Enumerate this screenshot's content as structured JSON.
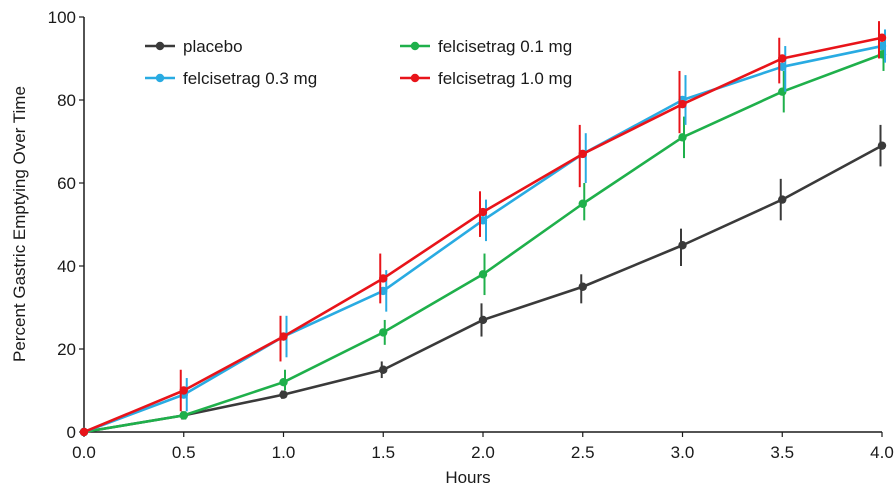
{
  "chart_data": {
    "type": "line",
    "xlabel": "Hours",
    "ylabel": "Percent Gastric Emptying Over Time",
    "xlim": [
      0,
      4
    ],
    "ylim": [
      0,
      100
    ],
    "x_ticks": [
      "0.0",
      "0.5",
      "1.0",
      "1.5",
      "2.0",
      "2.5",
      "3.0",
      "3.5",
      "4.0"
    ],
    "y_ticks": [
      "0",
      "20",
      "40",
      "60",
      "80",
      "100"
    ],
    "grid": false,
    "legend_placement": "top-left",
    "x": [
      0,
      0.5,
      1.0,
      1.5,
      2.0,
      2.5,
      3.0,
      3.5,
      4.0
    ],
    "series": [
      {
        "name": "placebo",
        "color": "#3a3a3a",
        "values": [
          0,
          4,
          9,
          15,
          27,
          35,
          45,
          56,
          69
        ],
        "err_low": [
          0,
          3,
          8,
          13,
          23,
          31,
          40,
          51,
          64
        ],
        "err_high": [
          0,
          5,
          10,
          17,
          31,
          38,
          49,
          61,
          74
        ]
      },
      {
        "name": "felcisetrag 0.1 mg",
        "color": "#1fb04b",
        "values": [
          0,
          4,
          12,
          24,
          38,
          55,
          71,
          82,
          91
        ],
        "err_low": [
          0,
          3,
          10,
          21,
          33,
          51,
          66,
          77,
          87
        ],
        "err_high": [
          0,
          5,
          15,
          27,
          43,
          60,
          76,
          87,
          94
        ]
      },
      {
        "name": "felcisetrag 0.3 mg",
        "color": "#29abe2",
        "values": [
          0,
          9,
          23,
          34,
          51,
          67,
          80,
          88,
          93
        ],
        "err_low": [
          0,
          5,
          18,
          29,
          46,
          60,
          74,
          82,
          89
        ],
        "err_high": [
          0,
          13,
          28,
          39,
          56,
          72,
          86,
          93,
          97
        ]
      },
      {
        "name": "felcisetrag 1.0 mg",
        "color": "#e8141a",
        "values": [
          0,
          10,
          23,
          37,
          53,
          67,
          79,
          90,
          95
        ],
        "err_low": [
          0,
          5,
          17,
          31,
          47,
          59,
          72,
          84,
          90
        ],
        "err_high": [
          0,
          15,
          28,
          43,
          58,
          74,
          87,
          95,
          99
        ]
      }
    ]
  }
}
